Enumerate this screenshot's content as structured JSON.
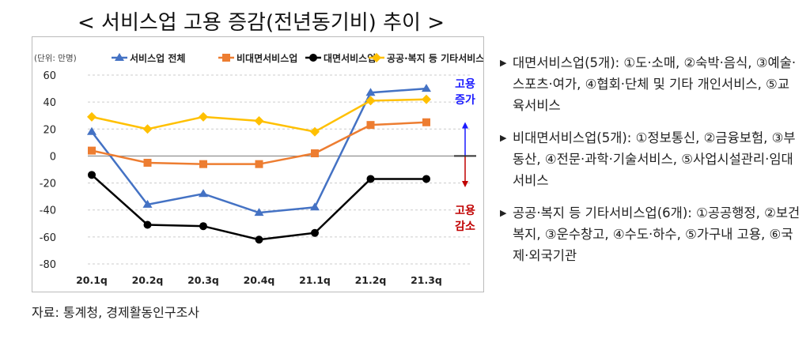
{
  "title": "< 서비스업 고용 증감(전년동기비) 추이 >",
  "chart_data": {
    "type": "line",
    "unit_label": "(단위: 만명)",
    "categories": [
      "20.1q",
      "20.2q",
      "20.3q",
      "20.4q",
      "21.1q",
      "21.2q",
      "21.3q"
    ],
    "ylim": [
      -80,
      60
    ],
    "yticks": [
      60,
      40,
      20,
      0,
      -20,
      -40,
      -60,
      -80
    ],
    "grid": true,
    "legend_position": "top",
    "series": [
      {
        "name": "서비스업 전체",
        "color": "#4472C4",
        "marker": "triangle",
        "values": [
          18,
          -36,
          -28,
          -42,
          -38,
          47,
          50
        ]
      },
      {
        "name": "비대면서비스업",
        "color": "#ED7D31",
        "marker": "square",
        "values": [
          4,
          -5,
          -6,
          -6,
          2,
          23,
          25
        ]
      },
      {
        "name": "대면서비스업",
        "color": "#000000",
        "marker": "circle",
        "values": [
          -14,
          -51,
          -52,
          -62,
          -57,
          -17,
          -17
        ]
      },
      {
        "name": "공공·복지 등 기타서비스업",
        "color": "#FFC000",
        "marker": "diamond",
        "values": [
          29,
          20,
          29,
          26,
          18,
          41,
          42
        ]
      }
    ],
    "annotations": {
      "up": [
        "고용",
        "증가"
      ],
      "down": [
        "고용",
        "감소"
      ],
      "up_color": "#1a1aff",
      "down_color": "#c00000"
    }
  },
  "source": "자료: 통계청, 경제활동인구조사",
  "notes": [
    "대면서비스업(5개): ①도·소매, ②숙박·음식, ③예술·스포츠·여가, ④협회·단체 및 기타 개인서비스, ⑤교육서비스",
    "비대면서비스업(5개): ①정보통신, ②금융보험, ③부동산, ④전문·과학·기술서비스, ⑤사업시설관리·임대서비스",
    "공공·복지 등 기타서비스업(6개): ①공공행정, ②보건복지, ③운수창고, ④수도·하수, ⑤가구내 고용, ⑥국제·외국기관"
  ]
}
